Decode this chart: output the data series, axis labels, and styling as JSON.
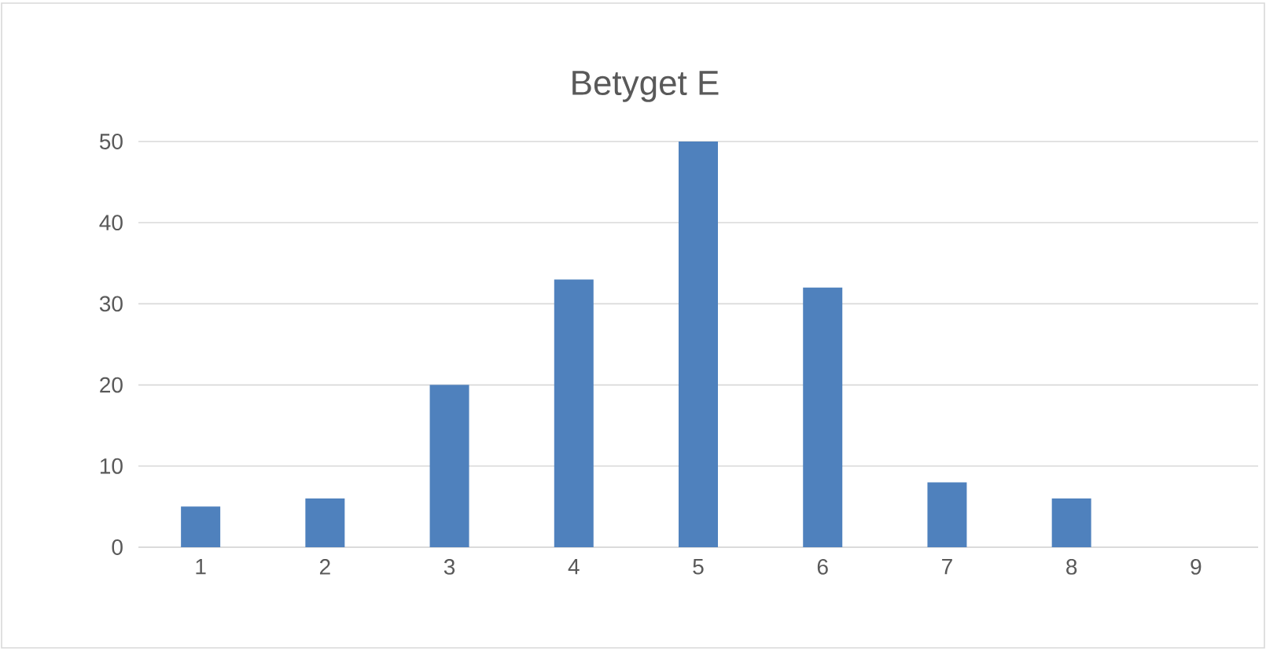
{
  "chart_data": {
    "type": "bar",
    "title": "Betyget E",
    "categories": [
      "1",
      "2",
      "3",
      "4",
      "5",
      "6",
      "7",
      "8",
      "9"
    ],
    "values": [
      5,
      6,
      20,
      33,
      50,
      32,
      8,
      6,
      0
    ],
    "color": "#4f81bd",
    "ylim": [
      0,
      50
    ],
    "yticks": [
      0,
      10,
      20,
      30,
      40,
      50
    ],
    "grid": "y"
  }
}
